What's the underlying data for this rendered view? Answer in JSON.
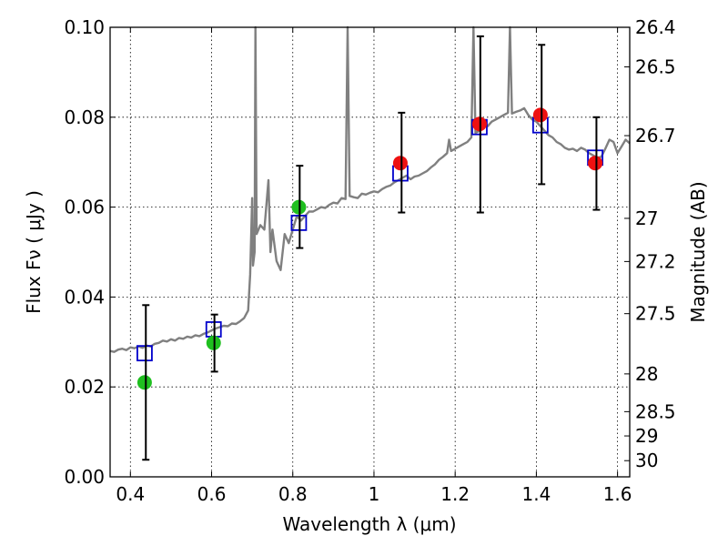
{
  "chart_data": {
    "type": "scatter",
    "xlabel": "Wavelength  λ (μm)",
    "ylabel": "Flux  Fν ( μJy )",
    "ylabel_right": "Magnitude (AB)",
    "xlim": [
      0.35,
      1.63
    ],
    "ylim": [
      0,
      0.1
    ],
    "grid": true,
    "x_ticks": [
      0.4,
      0.6,
      0.8,
      1.0,
      1.2,
      1.4,
      1.6
    ],
    "x_tick_labels": [
      "0.4",
      "0.6",
      "0.8",
      "1",
      "1.2",
      "1.4",
      "1.6"
    ],
    "y_ticks": [
      0,
      0.02,
      0.04,
      0.06,
      0.08,
      0.1
    ],
    "y_tick_labels": [
      "0.00",
      "0.02",
      "0.04",
      "0.06",
      "0.08",
      "0.10"
    ],
    "right_ticks": [
      {
        "label": "26.4",
        "flux": 0.1
      },
      {
        "label": "26.5",
        "flux": 0.0912
      },
      {
        "label": "26.7",
        "flux": 0.0759
      },
      {
        "label": "27",
        "flux": 0.0575
      },
      {
        "label": "27.2",
        "flux": 0.0479
      },
      {
        "label": "27.5",
        "flux": 0.0363
      },
      {
        "label": "28",
        "flux": 0.0229
      },
      {
        "label": "28.5",
        "flux": 0.0145
      },
      {
        "label": "29",
        "flux": 0.0091
      },
      {
        "label": "30",
        "flux": 0.0036
      }
    ],
    "series": [
      {
        "kind": "line",
        "color": "#808080",
        "points": [
          [
            0.35,
            0.028
          ],
          [
            0.36,
            0.0278
          ],
          [
            0.37,
            0.0283
          ],
          [
            0.38,
            0.0285
          ],
          [
            0.39,
            0.0282
          ],
          [
            0.4,
            0.0288
          ],
          [
            0.41,
            0.0286
          ],
          [
            0.42,
            0.029
          ],
          [
            0.43,
            0.0287
          ],
          [
            0.44,
            0.0292
          ],
          [
            0.45,
            0.029
          ],
          [
            0.46,
            0.0296
          ],
          [
            0.47,
            0.0298
          ],
          [
            0.48,
            0.0303
          ],
          [
            0.49,
            0.0301
          ],
          [
            0.5,
            0.0306
          ],
          [
            0.51,
            0.0303
          ],
          [
            0.52,
            0.0309
          ],
          [
            0.53,
            0.0307
          ],
          [
            0.54,
            0.0312
          ],
          [
            0.55,
            0.031
          ],
          [
            0.56,
            0.0315
          ],
          [
            0.57,
            0.0313
          ],
          [
            0.58,
            0.0318
          ],
          [
            0.59,
            0.0321
          ],
          [
            0.6,
            0.0326
          ],
          [
            0.61,
            0.033
          ],
          [
            0.62,
            0.0333
          ],
          [
            0.63,
            0.0336
          ],
          [
            0.64,
            0.0335
          ],
          [
            0.65,
            0.0341
          ],
          [
            0.66,
            0.034
          ],
          [
            0.67,
            0.0346
          ],
          [
            0.68,
            0.0353
          ],
          [
            0.69,
            0.037
          ],
          [
            0.695,
            0.045
          ],
          [
            0.7,
            0.062
          ],
          [
            0.702,
            0.047
          ],
          [
            0.706,
            0.05
          ],
          [
            0.708,
            0.1
          ],
          [
            0.711,
            0.054
          ],
          [
            0.72,
            0.056
          ],
          [
            0.73,
            0.055
          ],
          [
            0.74,
            0.066
          ],
          [
            0.745,
            0.05
          ],
          [
            0.75,
            0.055
          ],
          [
            0.76,
            0.048
          ],
          [
            0.77,
            0.046
          ],
          [
            0.78,
            0.054
          ],
          [
            0.79,
            0.052
          ],
          [
            0.8,
            0.055
          ],
          [
            0.81,
            0.058
          ],
          [
            0.82,
            0.057
          ],
          [
            0.83,
            0.058
          ],
          [
            0.84,
            0.059
          ],
          [
            0.85,
            0.059
          ],
          [
            0.86,
            0.0595
          ],
          [
            0.87,
            0.06
          ],
          [
            0.88,
            0.0598
          ],
          [
            0.89,
            0.0605
          ],
          [
            0.9,
            0.061
          ],
          [
            0.91,
            0.0608
          ],
          [
            0.92,
            0.062
          ],
          [
            0.93,
            0.0618
          ],
          [
            0.935,
            0.1
          ],
          [
            0.94,
            0.0625
          ],
          [
            0.95,
            0.0622
          ],
          [
            0.96,
            0.062
          ],
          [
            0.97,
            0.063
          ],
          [
            0.98,
            0.0628
          ],
          [
            0.99,
            0.0632
          ],
          [
            1.0,
            0.0635
          ],
          [
            1.01,
            0.0633
          ],
          [
            1.02,
            0.064
          ],
          [
            1.03,
            0.0645
          ],
          [
            1.04,
            0.0648
          ],
          [
            1.05,
            0.0655
          ],
          [
            1.06,
            0.066
          ],
          [
            1.07,
            0.0665
          ],
          [
            1.08,
            0.067
          ],
          [
            1.09,
            0.0662
          ],
          [
            1.1,
            0.0668
          ],
          [
            1.11,
            0.067
          ],
          [
            1.12,
            0.0675
          ],
          [
            1.13,
            0.068
          ],
          [
            1.14,
            0.0688
          ],
          [
            1.15,
            0.0695
          ],
          [
            1.16,
            0.0705
          ],
          [
            1.17,
            0.0712
          ],
          [
            1.18,
            0.072
          ],
          [
            1.185,
            0.075
          ],
          [
            1.19,
            0.0725
          ],
          [
            1.2,
            0.073
          ],
          [
            1.21,
            0.0735
          ],
          [
            1.22,
            0.074
          ],
          [
            1.23,
            0.0745
          ],
          [
            1.24,
            0.0755
          ],
          [
            1.245,
            0.1
          ],
          [
            1.25,
            0.0765
          ],
          [
            1.26,
            0.077
          ],
          [
            1.27,
            0.0785
          ],
          [
            1.28,
            0.078
          ],
          [
            1.29,
            0.079
          ],
          [
            1.3,
            0.0795
          ],
          [
            1.31,
            0.08
          ],
          [
            1.32,
            0.0805
          ],
          [
            1.33,
            0.081
          ],
          [
            1.335,
            0.1
          ],
          [
            1.34,
            0.0808
          ],
          [
            1.35,
            0.0812
          ],
          [
            1.36,
            0.0815
          ],
          [
            1.37,
            0.082
          ],
          [
            1.38,
            0.0805
          ],
          [
            1.39,
            0.0795
          ],
          [
            1.4,
            0.079
          ],
          [
            1.41,
            0.078
          ],
          [
            1.42,
            0.077
          ],
          [
            1.43,
            0.076
          ],
          [
            1.44,
            0.0755
          ],
          [
            1.45,
            0.0745
          ],
          [
            1.46,
            0.074
          ],
          [
            1.47,
            0.0732
          ],
          [
            1.48,
            0.0728
          ],
          [
            1.49,
            0.073
          ],
          [
            1.5,
            0.0725
          ],
          [
            1.51,
            0.0732
          ],
          [
            1.52,
            0.0728
          ],
          [
            1.53,
            0.072
          ],
          [
            1.54,
            0.0715
          ],
          [
            1.55,
            0.071
          ],
          [
            1.56,
            0.0712
          ],
          [
            1.57,
            0.073
          ],
          [
            1.58,
            0.075
          ],
          [
            1.59,
            0.0745
          ],
          [
            1.6,
            0.072
          ],
          [
            1.61,
            0.0735
          ],
          [
            1.62,
            0.075
          ],
          [
            1.63,
            0.0742
          ]
        ]
      },
      {
        "kind": "open-square",
        "color": "#0000cc",
        "points": [
          [
            0.435,
            0.0275
          ],
          [
            0.605,
            0.0328
          ],
          [
            0.815,
            0.0565
          ],
          [
            1.065,
            0.0675
          ],
          [
            1.26,
            0.0778
          ],
          [
            1.41,
            0.0782
          ],
          [
            1.545,
            0.071
          ]
        ]
      },
      {
        "kind": "filled-circle",
        "color": "#1fbf1f",
        "points": [
          [
            0.435,
            0.021
          ],
          [
            0.605,
            0.0298
          ],
          [
            0.815,
            0.06
          ]
        ]
      },
      {
        "kind": "filled-circle",
        "color": "#ee1111",
        "points": [
          [
            1.065,
            0.0698
          ],
          [
            1.26,
            0.0785
          ],
          [
            1.41,
            0.0805
          ],
          [
            1.545,
            0.0698
          ]
        ]
      },
      {
        "kind": "errorbar",
        "color": "#000000",
        "points": [
          [
            0.438,
            0.0038,
            0.0382
          ],
          [
            0.607,
            0.0234,
            0.0361
          ],
          [
            0.817,
            0.0509,
            0.0692
          ],
          [
            1.068,
            0.0588,
            0.081
          ],
          [
            1.262,
            0.0588,
            0.098
          ],
          [
            1.413,
            0.0651,
            0.0961
          ],
          [
            1.548,
            0.0594,
            0.08
          ]
        ]
      }
    ]
  }
}
